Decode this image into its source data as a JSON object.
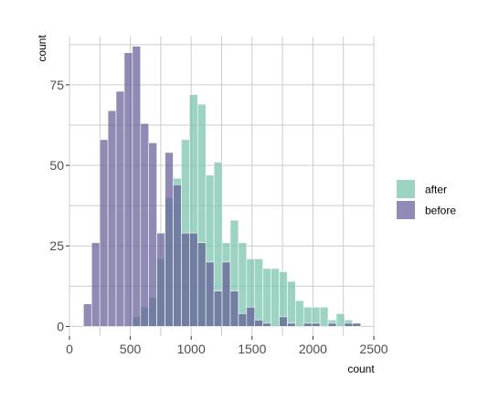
{
  "chart_data": {
    "type": "bar",
    "subtype": "overlapping-histogram",
    "xlabel": "count",
    "ylabel": "count",
    "xlim": [
      0,
      2500
    ],
    "ylim": [
      -3,
      90
    ],
    "x_ticks": [
      0,
      500,
      1000,
      1500,
      2000,
      2500
    ],
    "x_tick_labels": [
      "0",
      "500",
      "1000",
      "1500",
      "2000",
      "2500"
    ],
    "y_ticks": [
      0,
      25,
      50,
      75
    ],
    "y_tick_labels": [
      "0",
      "25",
      "50",
      "75"
    ],
    "grid": true,
    "legend_position": "right",
    "bin_width": 67,
    "series": [
      {
        "name": "after",
        "color": "#73c0aa",
        "bins": [
          {
            "x0": 517,
            "count": 3
          },
          {
            "x0": 584,
            "count": 6
          },
          {
            "x0": 651,
            "count": 9
          },
          {
            "x0": 718,
            "count": 21
          },
          {
            "x0": 785,
            "count": 40
          },
          {
            "x0": 852,
            "count": 46
          },
          {
            "x0": 919,
            "count": 58
          },
          {
            "x0": 986,
            "count": 72
          },
          {
            "x0": 1053,
            "count": 69
          },
          {
            "x0": 1120,
            "count": 47
          },
          {
            "x0": 1187,
            "count": 51
          },
          {
            "x0": 1254,
            "count": 26
          },
          {
            "x0": 1321,
            "count": 33
          },
          {
            "x0": 1388,
            "count": 26
          },
          {
            "x0": 1455,
            "count": 21
          },
          {
            "x0": 1522,
            "count": 21
          },
          {
            "x0": 1589,
            "count": 18
          },
          {
            "x0": 1656,
            "count": 18
          },
          {
            "x0": 1723,
            "count": 17
          },
          {
            "x0": 1790,
            "count": 14
          },
          {
            "x0": 1857,
            "count": 8
          },
          {
            "x0": 1924,
            "count": 6
          },
          {
            "x0": 1991,
            "count": 6
          },
          {
            "x0": 2058,
            "count": 6
          },
          {
            "x0": 2125,
            "count": 2
          },
          {
            "x0": 2192,
            "count": 4
          },
          {
            "x0": 2259,
            "count": 2
          },
          {
            "x0": 2326,
            "count": 1
          }
        ]
      },
      {
        "name": "before",
        "color": "#5f5a94",
        "bins": [
          {
            "x0": 115,
            "count": 7
          },
          {
            "x0": 182,
            "count": 26
          },
          {
            "x0": 249,
            "count": 58
          },
          {
            "x0": 316,
            "count": 67
          },
          {
            "x0": 383,
            "count": 73
          },
          {
            "x0": 450,
            "count": 85
          },
          {
            "x0": 517,
            "count": 87
          },
          {
            "x0": 584,
            "count": 63
          },
          {
            "x0": 651,
            "count": 57
          },
          {
            "x0": 718,
            "count": 29
          },
          {
            "x0": 785,
            "count": 54
          },
          {
            "x0": 852,
            "count": 44
          },
          {
            "x0": 919,
            "count": 29
          },
          {
            "x0": 986,
            "count": 29
          },
          {
            "x0": 1053,
            "count": 26
          },
          {
            "x0": 1120,
            "count": 20
          },
          {
            "x0": 1187,
            "count": 11
          },
          {
            "x0": 1254,
            "count": 20
          },
          {
            "x0": 1321,
            "count": 11
          },
          {
            "x0": 1388,
            "count": 4
          },
          {
            "x0": 1455,
            "count": 6
          },
          {
            "x0": 1522,
            "count": 2
          },
          {
            "x0": 1589,
            "count": 1
          },
          {
            "x0": 1656,
            "count": 0
          },
          {
            "x0": 1723,
            "count": 3
          },
          {
            "x0": 1790,
            "count": 1
          },
          {
            "x0": 1857,
            "count": 0
          },
          {
            "x0": 1924,
            "count": 1
          },
          {
            "x0": 1991,
            "count": 1
          },
          {
            "x0": 2058,
            "count": 0
          },
          {
            "x0": 2125,
            "count": 1
          },
          {
            "x0": 2192,
            "count": 0
          },
          {
            "x0": 2259,
            "count": 1
          },
          {
            "x0": 2326,
            "count": 1
          }
        ]
      }
    ]
  }
}
